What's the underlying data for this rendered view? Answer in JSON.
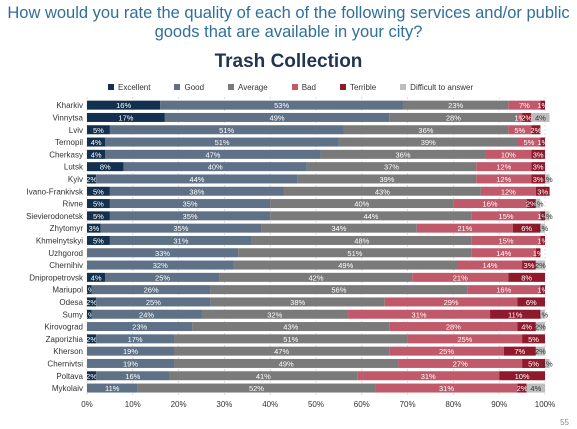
{
  "question": "How would you rate the quality of each of the following services and/or public goods that are available in your city?",
  "page_number": "55",
  "chart_data": {
    "type": "bar",
    "orientation": "horizontal-stacked-100",
    "title": "Trash Collection",
    "xlim": [
      0,
      100
    ],
    "x_ticks": [
      "0%",
      "10%",
      "20%",
      "30%",
      "40%",
      "50%",
      "60%",
      "70%",
      "80%",
      "90%",
      "100%"
    ],
    "grid": true,
    "legend_position": "top",
    "categories": [
      "Kharkiv",
      "Vinnytsa",
      "Lviv",
      "Ternopil",
      "Cherkasy",
      "Lutsk",
      "Kyiv",
      "Ivano-Frankivsk",
      "Rivne",
      "Sievierodonetsk",
      "Zhytomyr",
      "Khmelnytskyi",
      "Uzhgorod",
      "Chernihiv",
      "Dnipropetrovsk",
      "Mariupol",
      "Odesa",
      "Sumy",
      "Kirovograd",
      "Zaporizhia",
      "Kherson",
      "Chernivtsi",
      "Poltava",
      "Mykolaiv"
    ],
    "series": [
      {
        "name": "Excellent",
        "color": "#13314e",
        "values": [
          16,
          17,
          5,
          4,
          4,
          8,
          2,
          5,
          5,
          5,
          3,
          5,
          0,
          0,
          4,
          1,
          2,
          1,
          0,
          2,
          0,
          0,
          2,
          0
        ],
        "labels": [
          "16%",
          "17%",
          "5%",
          "4%",
          "4%",
          "8%",
          "2%",
          "5%",
          "5%",
          "5%",
          "3%",
          "5%",
          "",
          "",
          "4%",
          "1%",
          "2%",
          "1%",
          "",
          "2%",
          "",
          "",
          "2%",
          ""
        ]
      },
      {
        "name": "Good",
        "color": "#5e7187",
        "values": [
          53,
          49,
          51,
          51,
          47,
          40,
          44,
          38,
          35,
          35,
          35,
          31,
          33,
          32,
          25,
          26,
          25,
          24,
          23,
          17,
          19,
          19,
          16,
          11
        ],
        "labels": [
          "53%",
          "49%",
          "51%",
          "51%",
          "47%",
          "40%",
          "44%",
          "38%",
          "35%",
          "35%",
          "35%",
          "31%",
          "33%",
          "32%",
          "25%",
          "26%",
          "25%",
          "24%",
          "23%",
          "17%",
          "19%",
          "19%",
          "16%",
          "11%"
        ]
      },
      {
        "name": "Average",
        "color": "#7a7a7a",
        "values": [
          23,
          28,
          36,
          39,
          36,
          37,
          39,
          43,
          40,
          44,
          34,
          48,
          51,
          49,
          42,
          56,
          38,
          32,
          43,
          51,
          47,
          49,
          41,
          52
        ],
        "labels": [
          "23%",
          "28%",
          "36%",
          "39%",
          "36%",
          "37%",
          "39%",
          "43%",
          "40%",
          "44%",
          "34%",
          "48%",
          "51%",
          "49%",
          "42%",
          "56%",
          "38%",
          "32%",
          "43%",
          "51%",
          "47%",
          "49%",
          "41%",
          "52%"
        ]
      },
      {
        "name": "Bad",
        "color": "#c0596a",
        "values": [
          7,
          1,
          5,
          5,
          10,
          12,
          12,
          12,
          16,
          15,
          21,
          15,
          14,
          14,
          21,
          16,
          29,
          31,
          28,
          25,
          25,
          27,
          31,
          31
        ],
        "labels": [
          "7%",
          "1%",
          "5%",
          "5%",
          "10%",
          "12%",
          "12%",
          "12%",
          "16%",
          "15%",
          "21%",
          "15%",
          "14%",
          "14%",
          "21%",
          "16%",
          "29%",
          "31%",
          "28%",
          "25%",
          "25%",
          "27%",
          "31%",
          "31%"
        ]
      },
      {
        "name": "Terrible",
        "color": "#8e1a2c",
        "values": [
          1,
          2,
          2,
          1,
          3,
          3,
          3,
          3,
          2,
          1,
          6,
          1,
          1,
          3,
          8,
          1,
          6,
          11,
          4,
          5,
          7,
          5,
          10,
          2
        ],
        "labels": [
          "1%",
          "2%",
          "2%",
          "1%",
          "3%",
          "3%",
          "3%",
          "3%",
          "2%",
          "1%",
          "6%",
          "1%",
          "1%",
          "3%",
          "8%",
          "1%",
          "6%",
          "11%",
          "4%",
          "5%",
          "7%",
          "5%",
          "10%",
          "2%"
        ]
      },
      {
        "name": "Difficult to answer",
        "color": "#bdbdbd",
        "values": [
          0,
          4,
          0,
          0,
          0,
          0,
          1,
          0,
          1,
          1,
          1,
          0,
          0,
          2,
          0,
          0,
          0,
          1,
          2,
          0,
          2,
          1,
          0,
          4
        ],
        "labels": [
          "",
          "4%",
          "",
          "",
          "",
          "",
          "1%",
          "",
          "1%",
          "1%",
          "1%",
          "",
          "",
          "2%",
          "",
          "",
          "",
          "1%",
          "2%",
          "",
          "2%",
          "1%",
          "",
          "4%"
        ]
      }
    ]
  }
}
